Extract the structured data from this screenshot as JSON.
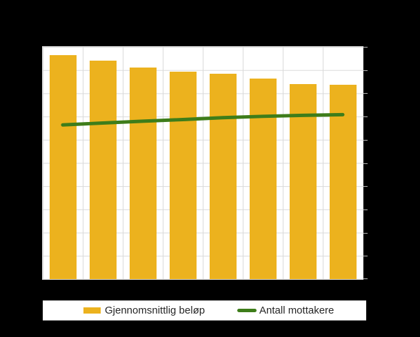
{
  "figure": {
    "background_color": "#000000",
    "plot_background_color": "#ffffff",
    "gridline_color": "#d9d9d9",
    "tick_color": "#bdbdbd",
    "title_visible": false,
    "axis_tick_labels_visible": false
  },
  "legend": {
    "position": "bottom",
    "background_color": "#ffffff",
    "items": [
      {
        "label": "Gjennomsnittlig beløp",
        "swatch": "bar",
        "color": "#ecb21e"
      },
      {
        "label": "Antall mottakere",
        "swatch": "line",
        "color": "#3e7d1a"
      }
    ]
  },
  "chart_data": {
    "type": "combo",
    "title": "",
    "xlabel": "",
    "ylabel": "",
    "x": [
      1,
      2,
      3,
      4,
      5,
      6,
      7,
      8
    ],
    "x_tick_labels": [],
    "value_scale": [
      0,
      10
    ],
    "h_grid_divisions": 10,
    "v_grid_divisions": 8,
    "grid": true,
    "right_axis_ticks": 11,
    "legend_position": "bottom",
    "series": [
      {
        "name": "Gjennomsnittlig beløp",
        "type": "bar",
        "axis": "left",
        "color": "#ecb21e",
        "values": [
          9.64,
          9.41,
          9.11,
          8.94,
          8.85,
          8.64,
          8.41,
          8.38
        ]
      },
      {
        "name": "Antall mottakere",
        "type": "line",
        "axis": "right",
        "color": "#3e7d1a",
        "line_width": 5,
        "values": [
          6.64,
          6.72,
          6.8,
          6.87,
          6.95,
          7.01,
          7.05,
          7.08
        ]
      }
    ]
  }
}
